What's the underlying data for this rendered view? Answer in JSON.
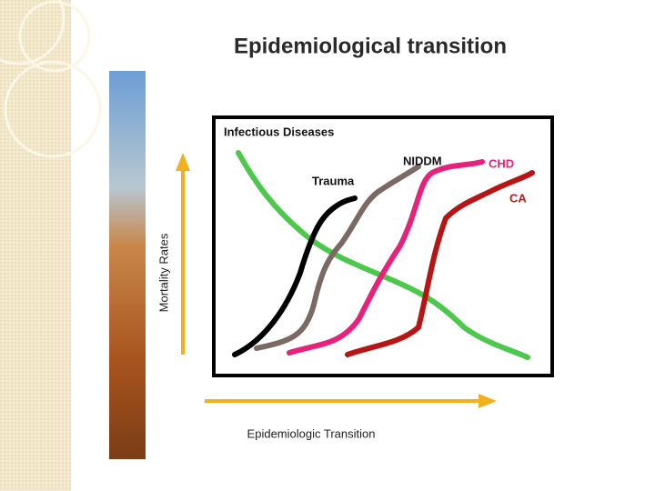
{
  "title": "Epidemiological transition",
  "diagram": {
    "y_axis_label": "Mortality Rates",
    "x_axis_label": "Epidemiologic Transition",
    "curves": [
      {
        "label": "Infectious Diseases"
      },
      {
        "label": "Trauma"
      },
      {
        "label": "NIDDM"
      },
      {
        "label": "CHD"
      },
      {
        "label": "CA"
      }
    ]
  }
}
